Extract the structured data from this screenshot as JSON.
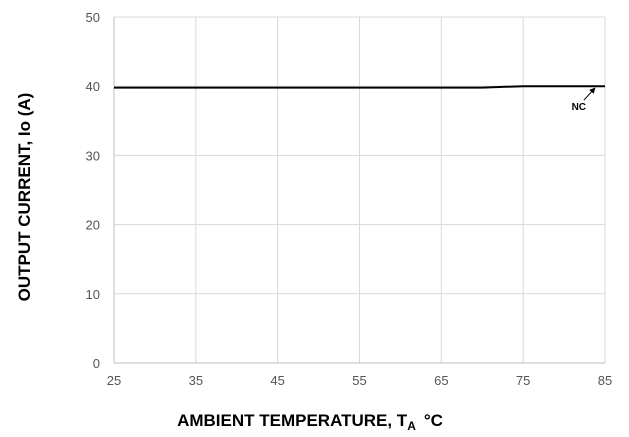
{
  "chart_data": {
    "type": "line",
    "xlabel": "AMBIENT TEMPERATURE, T",
    "xlabel_sub": "A",
    "xlabel_unit": "°C",
    "ylabel": "OUTPUT CURRENT, Io (A)",
    "xlim": [
      25,
      85
    ],
    "ylim": [
      0,
      50
    ],
    "x_ticks": [
      25,
      35,
      45,
      55,
      65,
      75,
      85
    ],
    "y_ticks": [
      0,
      10,
      20,
      30,
      40,
      50
    ],
    "grid": true,
    "series": [
      {
        "name": "NC",
        "color": "#000000",
        "x": [
          25,
          35,
          45,
          55,
          65,
          70,
          75,
          80,
          85
        ],
        "y": [
          39.8,
          39.8,
          39.8,
          39.8,
          39.8,
          39.8,
          40,
          40,
          40
        ]
      }
    ],
    "annotations": [
      {
        "text": "NC",
        "x": 84,
        "y": 40
      }
    ]
  }
}
